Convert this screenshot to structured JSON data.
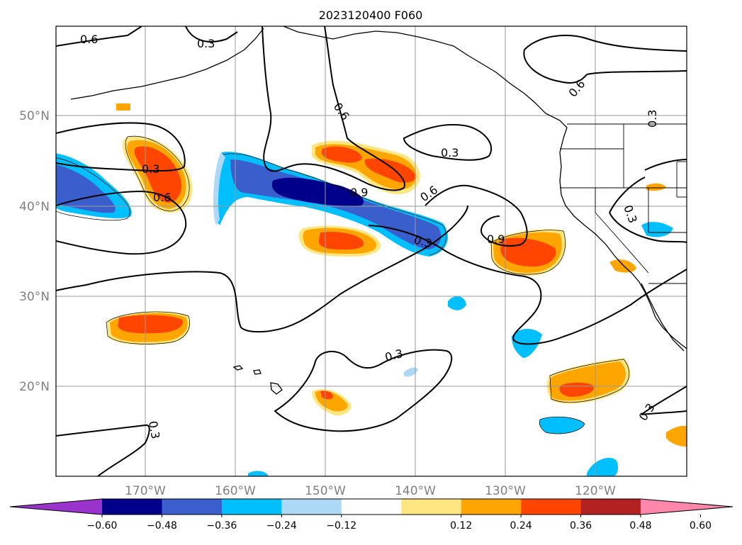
{
  "title": "2023120400 F060",
  "lat_labels": [
    "50°N",
    "40°N",
    "30°N",
    "20°N"
  ],
  "lon_labels": [
    "170°W",
    "160°W",
    "150°W",
    "140°W",
    "130°W",
    "120°W"
  ],
  "contour_labels": [
    "0.6",
    "0.3",
    "0.6",
    "0.3",
    "0.3",
    "0.6",
    "0.9",
    "0.3",
    "0.6",
    "0.3",
    "0.9",
    "0.6",
    "0.3",
    "0.3",
    "0.3",
    "0.3"
  ],
  "colorbar": {
    "tick_labels": [
      "−0.60",
      "−0.48",
      "−0.36",
      "−0.24",
      "−0.12",
      "0.12",
      "0.24",
      "0.36",
      "0.48",
      "0.60"
    ],
    "colors": [
      "#9933cc",
      "#00008b",
      "#3a5fcd",
      "#00bfff",
      "#add8f6",
      "#ffffff",
      "#ffe680",
      "#ffa500",
      "#ff4500",
      "#b22222",
      "#ff88aa"
    ]
  }
}
